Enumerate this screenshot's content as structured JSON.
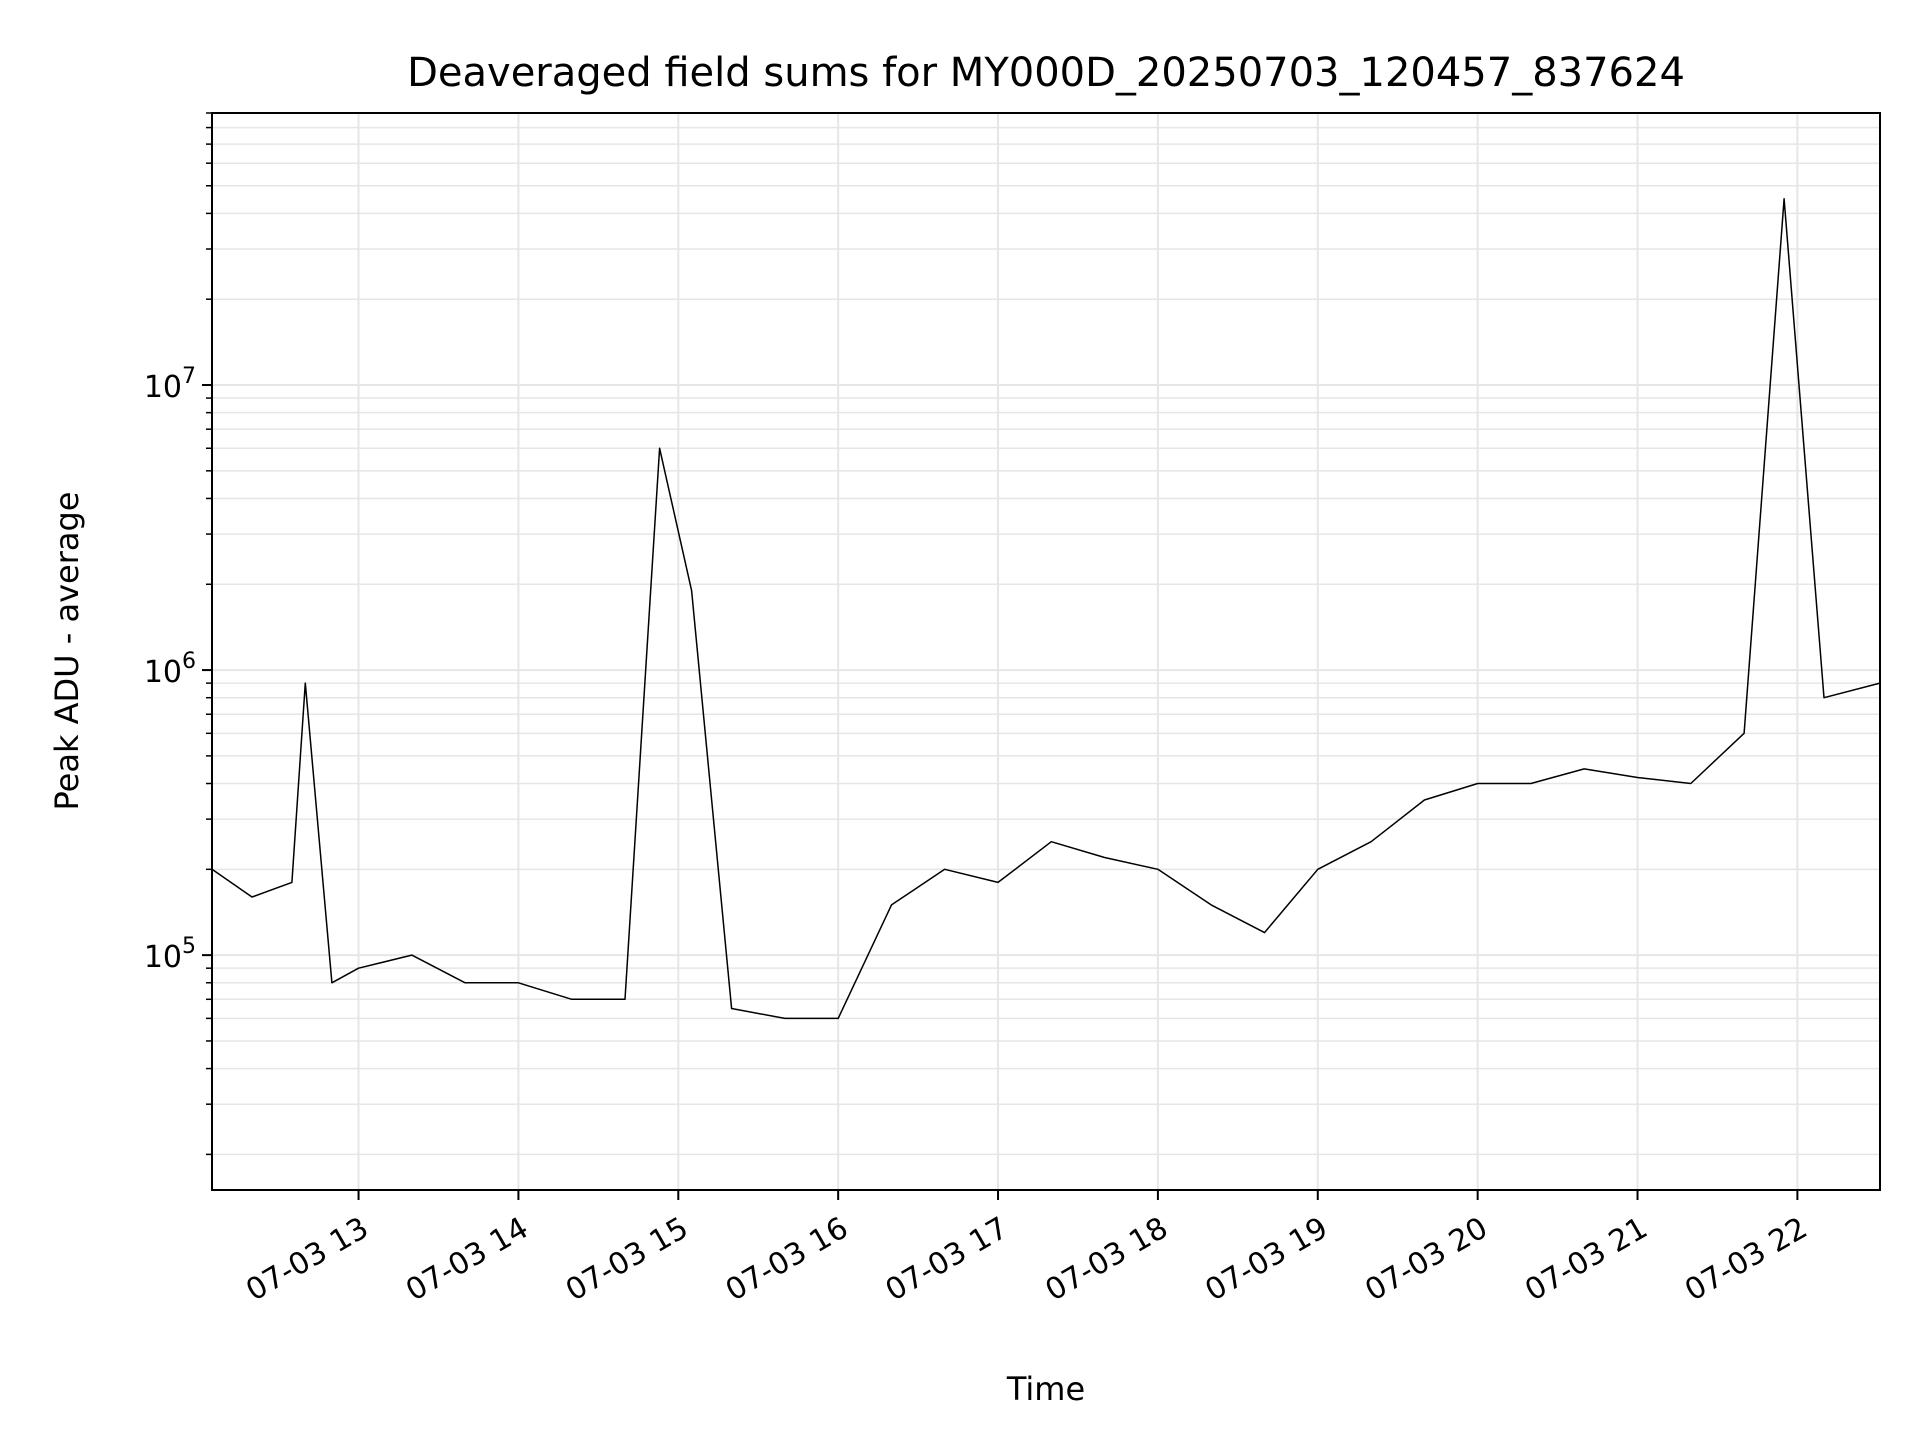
{
  "chart_data": {
    "type": "line",
    "title": "Deaveraged field sums for MY000D_20250703_120457_837624",
    "xlabel": "Time",
    "ylabel": "Peak ADU - average",
    "x_range": [
      "2025-07-03 12:05",
      "2025-07-03 22:31"
    ],
    "x_ticks": [
      {
        "x": "2025-07-03 13:00",
        "label": "07-03 13"
      },
      {
        "x": "2025-07-03 14:00",
        "label": "07-03 14"
      },
      {
        "x": "2025-07-03 15:00",
        "label": "07-03 15"
      },
      {
        "x": "2025-07-03 16:00",
        "label": "07-03 16"
      },
      {
        "x": "2025-07-03 17:00",
        "label": "07-03 17"
      },
      {
        "x": "2025-07-03 18:00",
        "label": "07-03 18"
      },
      {
        "x": "2025-07-03 19:00",
        "label": "07-03 19"
      },
      {
        "x": "2025-07-03 20:00",
        "label": "07-03 20"
      },
      {
        "x": "2025-07-03 21:00",
        "label": "07-03 21"
      },
      {
        "x": "2025-07-03 22:00",
        "label": "07-03 22"
      }
    ],
    "y_scale": "log",
    "ylim": [
      15000,
      90000000
    ],
    "y_ticks": [
      {
        "value": 100000,
        "base": "10",
        "exp": "5"
      },
      {
        "value": 1000000,
        "base": "10",
        "exp": "6"
      },
      {
        "value": 10000000,
        "base": "10",
        "exp": "7"
      }
    ],
    "grid": true,
    "line_color": "#000000",
    "grid_color": "#e6e6e6",
    "series": [
      {
        "points": [
          [
            "2025-07-03 12:05",
            200000
          ],
          [
            "2025-07-03 12:20",
            160000
          ],
          [
            "2025-07-03 12:35",
            180000
          ],
          [
            "2025-07-03 12:40",
            900000
          ],
          [
            "2025-07-03 12:50",
            80000
          ],
          [
            "2025-07-03 13:00",
            90000
          ],
          [
            "2025-07-03 13:20",
            100000
          ],
          [
            "2025-07-03 13:40",
            80000
          ],
          [
            "2025-07-03 14:00",
            80000
          ],
          [
            "2025-07-03 14:20",
            70000
          ],
          [
            "2025-07-03 14:40",
            70000
          ],
          [
            "2025-07-03 14:53",
            6000000
          ],
          [
            "2025-07-03 15:05",
            1900000
          ],
          [
            "2025-07-03 15:20",
            65000
          ],
          [
            "2025-07-03 15:40",
            60000
          ],
          [
            "2025-07-03 16:00",
            60000
          ],
          [
            "2025-07-03 16:20",
            150000
          ],
          [
            "2025-07-03 16:40",
            200000
          ],
          [
            "2025-07-03 17:00",
            180000
          ],
          [
            "2025-07-03 17:20",
            250000
          ],
          [
            "2025-07-03 17:40",
            220000
          ],
          [
            "2025-07-03 18:00",
            200000
          ],
          [
            "2025-07-03 18:20",
            150000
          ],
          [
            "2025-07-03 18:40",
            120000
          ],
          [
            "2025-07-03 19:00",
            200000
          ],
          [
            "2025-07-03 19:20",
            250000
          ],
          [
            "2025-07-03 19:40",
            350000
          ],
          [
            "2025-07-03 20:00",
            400000
          ],
          [
            "2025-07-03 20:20",
            400000
          ],
          [
            "2025-07-03 20:40",
            450000
          ],
          [
            "2025-07-03 21:00",
            420000
          ],
          [
            "2025-07-03 21:20",
            400000
          ],
          [
            "2025-07-03 21:40",
            600000
          ],
          [
            "2025-07-03 21:55",
            45000000
          ],
          [
            "2025-07-03 22:10",
            800000
          ],
          [
            "2025-07-03 22:31",
            900000
          ]
        ]
      }
    ]
  }
}
